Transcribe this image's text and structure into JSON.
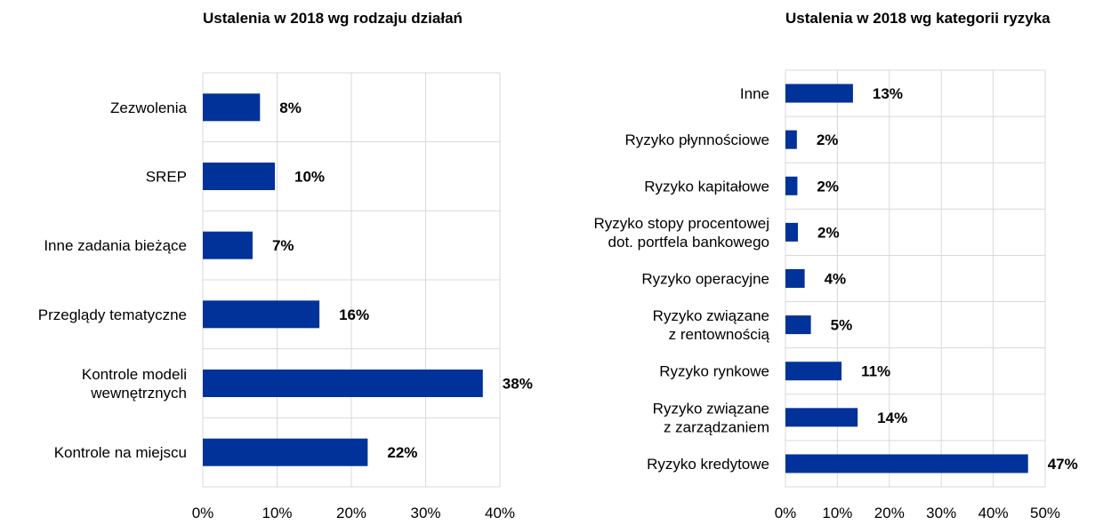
{
  "chart_data": [
    {
      "type": "bar",
      "orientation": "horizontal",
      "title": "Ustalenia w 2018 wg rodzaju działań",
      "categories": [
        [
          "Zezwolenia"
        ],
        [
          "SREP"
        ],
        [
          "Inne zadania bieżące"
        ],
        [
          "Przeglądy tematyczne"
        ],
        [
          "Kontrole modeli",
          "wewnętrznych"
        ],
        [
          "Kontrole na miejscu"
        ]
      ],
      "values": [
        8,
        10,
        7,
        16,
        38,
        22
      ],
      "value_fractions": [
        7.7,
        9.7,
        6.7,
        15.7,
        37.7,
        22.2
      ],
      "data_labels": [
        "8%",
        "10%",
        "7%",
        "16%",
        "38%",
        "22%"
      ],
      "xlim": [
        0,
        40
      ],
      "ticks": [
        0,
        10,
        20,
        30,
        40
      ],
      "tick_labels": [
        "0%",
        "10%",
        "20%",
        "30%",
        "40%"
      ],
      "grid": true,
      "bar_color": "#003299"
    },
    {
      "type": "bar",
      "orientation": "horizontal",
      "title": "Ustalenia w 2018 wg kategorii ryzyka",
      "categories": [
        [
          "Inne"
        ],
        [
          "Ryzyko płynnościowe"
        ],
        [
          "Ryzyko kapitałowe"
        ],
        [
          "Ryzyko stopy procentowej",
          "dot. portfela bankowego"
        ],
        [
          "Ryzyko operacyjne"
        ],
        [
          "Ryzyko związane",
          "z rentownością"
        ],
        [
          "Ryzyko rynkowe"
        ],
        [
          "Ryzyko związane",
          "z zarządzaniem"
        ],
        [
          "Ryzyko kredytowe"
        ]
      ],
      "values": [
        13,
        2,
        2,
        2,
        4,
        5,
        11,
        14,
        47
      ],
      "value_fractions": [
        13,
        2.2,
        2.3,
        2.4,
        3.7,
        4.9,
        10.8,
        13.9,
        46.7
      ],
      "data_labels": [
        "13%",
        "2%",
        "2%",
        "2%",
        "4%",
        "5%",
        "11%",
        "14%",
        "47%"
      ],
      "xlim": [
        0,
        50
      ],
      "ticks": [
        0,
        10,
        20,
        30,
        40,
        50
      ],
      "tick_labels": [
        "0%",
        "10%",
        "20%",
        "30%",
        "40%",
        "50%"
      ],
      "grid": true,
      "bar_color": "#003299"
    }
  ]
}
